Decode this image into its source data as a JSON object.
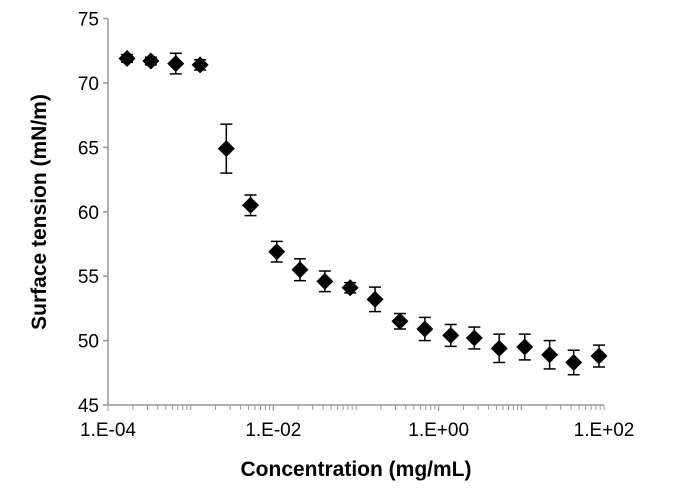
{
  "chart_data": {
    "type": "scatter",
    "title": "",
    "xlabel": "Concentration (mg/mL)",
    "ylabel": "Surface tension (mN/m)",
    "xscale": "log",
    "xlim": [
      0.0001,
      100
    ],
    "ylim": [
      45,
      75
    ],
    "xticks": [
      "1.E-04",
      "1.E-02",
      "1.E+00",
      "1.E+02"
    ],
    "xtick_values": [
      0.0001,
      0.01,
      1,
      100
    ],
    "yticks": [
      "45",
      "50",
      "55",
      "60",
      "65",
      "70",
      "75"
    ],
    "grid": false,
    "legend": "none",
    "marker": "diamond",
    "color": "#000000",
    "x": [
      0.00017,
      0.00033,
      0.00066,
      0.0013,
      0.0027,
      0.0053,
      0.011,
      0.021,
      0.042,
      0.085,
      0.17,
      0.34,
      0.68,
      1.4,
      2.7,
      5.4,
      11,
      22,
      43,
      87
    ],
    "y": [
      71.9,
      71.7,
      71.5,
      71.4,
      64.9,
      60.5,
      56.9,
      55.5,
      54.6,
      54.1,
      53.2,
      51.5,
      50.9,
      50.4,
      50.2,
      49.4,
      49.5,
      48.9,
      48.3,
      48.8
    ],
    "yerr": [
      0.3,
      0.3,
      0.8,
      0.4,
      1.9,
      0.8,
      0.8,
      0.85,
      0.8,
      0.4,
      0.95,
      0.6,
      0.9,
      0.85,
      0.85,
      1.1,
      1.0,
      1.1,
      0.95,
      0.85
    ]
  }
}
